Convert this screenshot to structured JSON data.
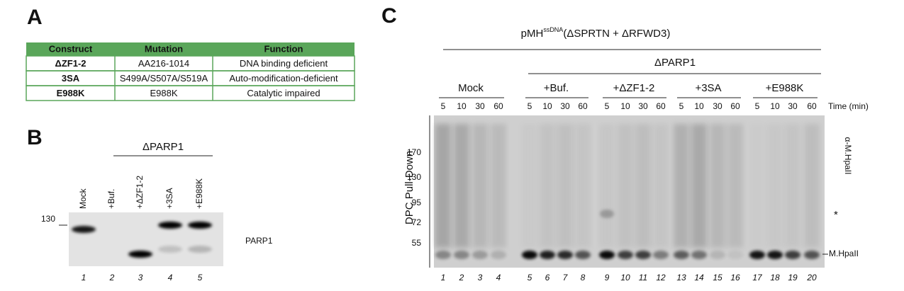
{
  "panel_a": {
    "label": "A",
    "table": {
      "header": [
        "Construct",
        "Mutation",
        "Function"
      ],
      "rows": [
        [
          "ΔZF1-2",
          "AA216-1014",
          "DNA binding deficient"
        ],
        [
          "3SA",
          "S499A/S507A/S519A",
          "Auto-modification-deficient"
        ],
        [
          "E988K",
          "E988K",
          "Catalytic impaired"
        ]
      ]
    }
  },
  "panel_b": {
    "label": "B",
    "group": "ΔPARP1",
    "lanes": [
      "Mock",
      "+Buf.",
      "+ΔZF1-2",
      "+3SA",
      "+E988K"
    ],
    "lane_numbers": [
      "1",
      "2",
      "3",
      "4",
      "5"
    ],
    "marker": "130",
    "band_label": "PARP1"
  },
  "panel_c": {
    "label": "C",
    "title": {
      "main": "pMH",
      "sup": "ssDNA",
      "rest": "(ΔSPRTN + ΔRFWD3)"
    },
    "group": "ΔPARP1",
    "conditions": [
      "Mock",
      "+Buf.",
      "+ΔZF1-2",
      "+3SA",
      "+E988K"
    ],
    "times": [
      "5",
      "10",
      "30",
      "60"
    ],
    "time_label": "Time (min)",
    "y_label": "DPC Pull-Down",
    "markers": [
      "170",
      "130",
      "95",
      "72",
      "55"
    ],
    "right_labels": [
      "α-M.HpaII",
      "*",
      "M.HpaII"
    ],
    "lane_numbers": [
      "1",
      "2",
      "3",
      "4",
      "5",
      "6",
      "7",
      "8",
      "9",
      "10",
      "11",
      "12",
      "13",
      "14",
      "15",
      "16",
      "17",
      "18",
      "19",
      "20"
    ]
  }
}
